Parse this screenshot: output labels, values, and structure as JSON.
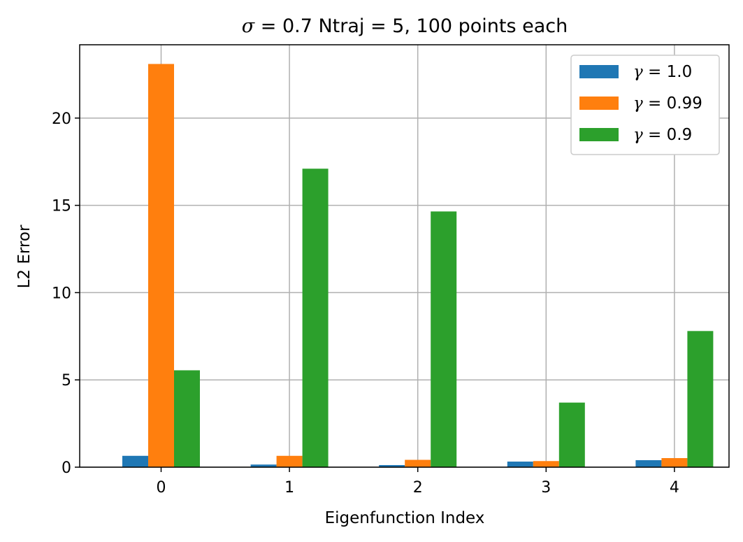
{
  "chart_data": {
    "type": "bar",
    "title": "σ = 0.7 Ntraj = 5, 100 points each",
    "title_symbol": "σ",
    "title_rest": " = 0.7 Ntraj = 5, 100 points each",
    "xlabel": "Eigenfunction Index",
    "ylabel": "L2 Error",
    "categories": [
      "0",
      "1",
      "2",
      "3",
      "4"
    ],
    "ylim": [
      0,
      24.2
    ],
    "yticks": [
      0,
      5,
      10,
      15,
      20
    ],
    "grid": true,
    "legend_position": "top-right",
    "series": [
      {
        "name": "γ = 1.0",
        "symbol": "γ",
        "value_label": " = 1.0",
        "color": "#1f77b4",
        "values": [
          0.65,
          0.15,
          0.12,
          0.32,
          0.4
        ]
      },
      {
        "name": "γ = 0.99",
        "symbol": "γ",
        "value_label": " = 0.99",
        "color": "#ff7f0e",
        "values": [
          23.1,
          0.65,
          0.42,
          0.35,
          0.52
        ]
      },
      {
        "name": "γ = 0.9",
        "symbol": "γ",
        "value_label": " = 0.9",
        "color": "#2ca02c",
        "values": [
          5.55,
          17.1,
          14.65,
          3.7,
          7.8
        ]
      }
    ]
  }
}
